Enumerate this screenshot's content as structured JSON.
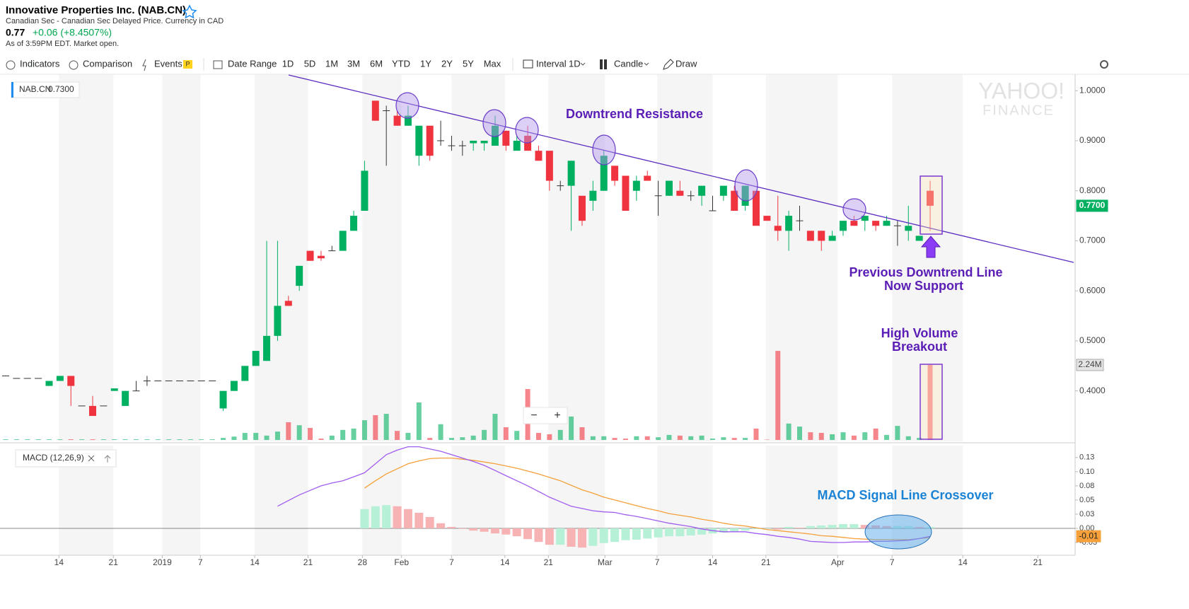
{
  "header": {
    "title": "Innovative Properties Inc. (NAB.CN)",
    "subtitle": "Canadian Sec - Canadian Sec Delayed Price. Currency in CAD",
    "price": "0.77",
    "change": "+0.06 (+8.4507%)",
    "as_of": "As of 3:59PM EDT. Market open."
  },
  "toolbar": {
    "indicators": "Indicators",
    "comparison": "Comparison",
    "events": "Events",
    "events_badge": "P",
    "date_range": "Date Range",
    "ranges": [
      "1D",
      "5D",
      "1M",
      "3M",
      "6M",
      "YTD",
      "1Y",
      "2Y",
      "5Y",
      "Max"
    ],
    "interval_label": "Interval",
    "interval_value": "1D",
    "chart_style": "Candle",
    "draw": "Draw"
  },
  "chart_data": {
    "type": "candlestick",
    "legend_symbol": "NAB.CN",
    "legend_value": "0.7300",
    "watermark": [
      "YAHOO!",
      "FINANCE"
    ],
    "zoom": [
      "−",
      "+"
    ],
    "up_color": "#00b061",
    "down_color": "#f0343f",
    "x": [
      0,
      1,
      2,
      3,
      4,
      5,
      6,
      7,
      8,
      9,
      10,
      11,
      12,
      13,
      14,
      15,
      16,
      17,
      18,
      19,
      20,
      21,
      22,
      23,
      24,
      25,
      26,
      27,
      28,
      29,
      30,
      31,
      32,
      33,
      34,
      35,
      36,
      37,
      38,
      39,
      40,
      41,
      42,
      43,
      44,
      45,
      46,
      47,
      48,
      49,
      50,
      51,
      52,
      53,
      54,
      55,
      56,
      57,
      58,
      59,
      60,
      61,
      62,
      63,
      64,
      65,
      66,
      67,
      68,
      69,
      70,
      71,
      72,
      73,
      74,
      75,
      76,
      77,
      78,
      79,
      80,
      81,
      82,
      83,
      84,
      85
    ],
    "xlim": [
      0,
      98.2
    ],
    "xticks": [
      {
        "value": 4.9,
        "label": "14"
      },
      {
        "value": 9.9,
        "label": "21"
      },
      {
        "value": 14.4,
        "label": "2019"
      },
      {
        "value": 17.9,
        "label": "7"
      },
      {
        "value": 22.9,
        "label": "14"
      },
      {
        "value": 27.8,
        "label": "21"
      },
      {
        "value": 32.8,
        "label": "28"
      },
      {
        "value": 36.4,
        "label": "Feb"
      },
      {
        "value": 41,
        "label": "7"
      },
      {
        "value": 45.9,
        "label": "14"
      },
      {
        "value": 49.9,
        "label": "21"
      },
      {
        "value": 55.1,
        "label": "Mar"
      },
      {
        "value": 59.9,
        "label": "7"
      },
      {
        "value": 65,
        "label": "14"
      },
      {
        "value": 69.9,
        "label": "21"
      },
      {
        "value": 76.5,
        "label": "Apr"
      },
      {
        "value": 81.5,
        "label": "7"
      },
      {
        "value": 88,
        "label": "14"
      },
      {
        "value": 94.9,
        "label": "21"
      }
    ],
    "open": [
      0.43,
      0.425,
      0.425,
      0.425,
      0.41,
      0.42,
      0.43,
      0.37,
      0.37,
      0.37,
      0.4,
      0.37,
      0.4,
      0.42,
      0.42,
      0.42,
      0.42,
      0.42,
      0.42,
      0.42,
      0.365,
      0.4,
      0.42,
      0.45,
      0.46,
      0.51,
      0.58,
      0.61,
      0.68,
      0.67,
      0.68,
      0.68,
      0.72,
      0.76,
      0.98,
      0.96,
      0.95,
      0.93,
      0.87,
      0.93,
      0.9,
      0.89,
      0.89,
      0.895,
      0.895,
      0.89,
      0.92,
      0.88,
      0.91,
      0.88,
      0.88,
      0.81,
      0.81,
      0.79,
      0.78,
      0.8,
      0.85,
      0.83,
      0.8,
      0.83,
      0.79,
      0.79,
      0.8,
      0.79,
      0.79,
      0.76,
      0.79,
      0.8,
      0.77,
      0.8,
      0.75,
      0.73,
      0.72,
      0.74,
      0.72,
      0.72,
      0.7,
      0.72,
      0.74,
      0.74,
      0.74,
      0.73,
      0.73,
      0.72,
      0.7,
      0.8
    ],
    "high": [
      0.43,
      0.425,
      0.425,
      0.425,
      0.42,
      0.43,
      0.43,
      0.37,
      0.39,
      0.37,
      0.405,
      0.4,
      0.42,
      0.43,
      0.42,
      0.42,
      0.42,
      0.42,
      0.42,
      0.42,
      0.4,
      0.42,
      0.45,
      0.48,
      0.7,
      0.7,
      0.59,
      0.65,
      0.68,
      0.68,
      0.69,
      0.72,
      0.76,
      0.86,
      0.98,
      0.97,
      0.96,
      0.97,
      0.93,
      0.93,
      0.94,
      0.91,
      0.9,
      0.9,
      0.9,
      0.95,
      0.92,
      0.91,
      0.93,
      0.89,
      0.88,
      0.82,
      0.86,
      0.79,
      0.82,
      0.88,
      0.85,
      0.83,
      0.83,
      0.84,
      0.82,
      0.82,
      0.82,
      0.8,
      0.81,
      0.79,
      0.81,
      0.81,
      0.81,
      0.8,
      0.75,
      0.79,
      0.76,
      0.77,
      0.72,
      0.72,
      0.72,
      0.74,
      0.75,
      0.75,
      0.74,
      0.75,
      0.74,
      0.77,
      0.71,
      0.82
    ],
    "low": [
      0.43,
      0.425,
      0.425,
      0.425,
      0.41,
      0.42,
      0.37,
      0.37,
      0.35,
      0.37,
      0.4,
      0.37,
      0.4,
      0.41,
      0.42,
      0.42,
      0.42,
      0.42,
      0.42,
      0.42,
      0.36,
      0.4,
      0.42,
      0.45,
      0.46,
      0.5,
      0.57,
      0.6,
      0.66,
      0.66,
      0.68,
      0.68,
      0.72,
      0.76,
      0.94,
      0.85,
      0.93,
      0.93,
      0.85,
      0.86,
      0.89,
      0.88,
      0.87,
      0.88,
      0.88,
      0.89,
      0.88,
      0.88,
      0.88,
      0.86,
      0.8,
      0.8,
      0.72,
      0.73,
      0.76,
      0.8,
      0.81,
      0.76,
      0.78,
      0.82,
      0.75,
      0.79,
      0.79,
      0.78,
      0.77,
      0.76,
      0.78,
      0.76,
      0.76,
      0.73,
      0.74,
      0.7,
      0.68,
      0.72,
      0.7,
      0.68,
      0.7,
      0.71,
      0.73,
      0.72,
      0.72,
      0.73,
      0.69,
      0.7,
      0.7,
      0.72
    ],
    "close": [
      0.43,
      0.425,
      0.425,
      0.425,
      0.42,
      0.43,
      0.41,
      0.37,
      0.35,
      0.37,
      0.405,
      0.4,
      0.4,
      0.42,
      0.42,
      0.42,
      0.42,
      0.42,
      0.42,
      0.42,
      0.4,
      0.42,
      0.45,
      0.48,
      0.51,
      0.57,
      0.57,
      0.65,
      0.66,
      0.665,
      0.68,
      0.72,
      0.75,
      0.84,
      0.94,
      0.96,
      0.93,
      0.95,
      0.93,
      0.87,
      0.9,
      0.89,
      0.89,
      0.9,
      0.9,
      0.93,
      0.89,
      0.9,
      0.88,
      0.86,
      0.82,
      0.81,
      0.86,
      0.74,
      0.8,
      0.87,
      0.82,
      0.76,
      0.82,
      0.82,
      0.79,
      0.82,
      0.79,
      0.79,
      0.81,
      0.76,
      0.81,
      0.76,
      0.81,
      0.73,
      0.74,
      0.72,
      0.75,
      0.74,
      0.7,
      0.7,
      0.71,
      0.74,
      0.73,
      0.75,
      0.73,
      0.74,
      0.73,
      0.73,
      0.71,
      0.77
    ],
    "ylim": [
      0.302,
      1.03
    ],
    "yticks": [
      {
        "value": 1.0,
        "label": "1.0000"
      },
      {
        "value": 0.9,
        "label": "0.9000"
      },
      {
        "value": 0.8,
        "label": "0.8000"
      },
      {
        "value": 0.7,
        "label": "0.7000"
      },
      {
        "value": 0.6,
        "label": "0.6000"
      },
      {
        "value": 0.5,
        "label": "0.5000"
      },
      {
        "value": 0.4,
        "label": "0.4000"
      }
    ],
    "price_marker": {
      "value": 0.77,
      "label": "0.7700"
    },
    "volume": {
      "ylim": [
        0,
        3000000
      ],
      "marker": {
        "value": 2240000,
        "label": "2.24M"
      },
      "values": [
        20000,
        20000,
        20000,
        20000,
        20000,
        20000,
        20000,
        20000,
        20000,
        20000,
        20000,
        20000,
        20000,
        20000,
        20000,
        20000,
        20000,
        20000,
        20000,
        20000,
        60000,
        100000,
        210000,
        210000,
        130000,
        250000,
        530000,
        440000,
        360000,
        40000,
        130000,
        300000,
        340000,
        590000,
        740000,
        780000,
        270000,
        210000,
        1120000,
        60000,
        470000,
        60000,
        80000,
        130000,
        300000,
        780000,
        380000,
        270000,
        1520000,
        210000,
        170000,
        300000,
        700000,
        380000,
        110000,
        110000,
        60000,
        40000,
        110000,
        110000,
        80000,
        150000,
        130000,
        110000,
        130000,
        40000,
        80000,
        60000,
        60000,
        340000,
        10000,
        2660000,
        490000,
        400000,
        230000,
        210000,
        170000,
        230000,
        130000,
        230000,
        340000,
        150000,
        420000,
        110000,
        60000,
        2240000
      ]
    },
    "macd": {
      "legend": "MACD (12,26,9)",
      "ylim": [
        -0.0475,
        0.146
      ],
      "macd_color": "#a15cf0",
      "signal_color": "#f5a03a",
      "up_color": "#b6f0d6",
      "down_color": "#f7b3b3",
      "yticks": [
        {
          "value": 0.125,
          "label": "0.13"
        },
        {
          "value": 0.1,
          "label": "0.10"
        },
        {
          "value": 0.075,
          "label": "0.08"
        },
        {
          "value": 0.05,
          "label": "0.05"
        },
        {
          "value": 0.025,
          "label": "0.03"
        },
        {
          "value": 0,
          "label": "0.00"
        },
        {
          "value": -0.025,
          "label": "-0.03"
        }
      ],
      "marker": {
        "value": -0.014,
        "label": "-0.01"
      },
      "macd_line": [
        null,
        null,
        null,
        null,
        null,
        null,
        null,
        null,
        null,
        null,
        null,
        null,
        null,
        null,
        null,
        null,
        null,
        null,
        null,
        null,
        null,
        null,
        null,
        null,
        null,
        0.039,
        0.049,
        0.059,
        0.067,
        0.075,
        0.08,
        0.084,
        0.091,
        0.098,
        0.114,
        0.13,
        0.138,
        0.144,
        0.144,
        0.14,
        0.136,
        0.13,
        0.124,
        0.118,
        0.111,
        0.102,
        0.093,
        0.084,
        0.075,
        0.065,
        0.055,
        0.047,
        0.039,
        0.035,
        0.031,
        0.029,
        0.028,
        0.024,
        0.021,
        0.017,
        0.013,
        0.009,
        0.006,
        0.003,
        -0.001,
        -0.004,
        -0.006,
        -0.006,
        -0.006,
        -0.009,
        -0.011,
        -0.014,
        -0.016,
        -0.019,
        -0.023,
        -0.024,
        -0.025,
        -0.025,
        -0.024,
        -0.024,
        -0.023,
        -0.023,
        -0.022,
        -0.021,
        -0.018,
        -0.014
      ],
      "signal_line": [
        null,
        null,
        null,
        null,
        null,
        null,
        null,
        null,
        null,
        null,
        null,
        null,
        null,
        null,
        null,
        null,
        null,
        null,
        null,
        null,
        null,
        null,
        null,
        null,
        null,
        null,
        null,
        null,
        null,
        null,
        null,
        null,
        null,
        0.071,
        0.084,
        0.096,
        0.105,
        0.114,
        0.119,
        0.123,
        0.124,
        0.124,
        0.122,
        0.12,
        0.117,
        0.114,
        0.11,
        0.106,
        0.101,
        0.096,
        0.09,
        0.084,
        0.076,
        0.068,
        0.062,
        0.055,
        0.05,
        0.045,
        0.04,
        0.035,
        0.031,
        0.026,
        0.023,
        0.02,
        0.016,
        0.013,
        0.009,
        0.006,
        0.004,
        0.001,
        -0.002,
        -0.004,
        -0.006,
        -0.008,
        -0.01,
        -0.013,
        -0.014,
        -0.016,
        -0.018,
        -0.019,
        -0.02,
        -0.02,
        -0.02,
        -0.02,
        -0.018,
        -0.016
      ],
      "histogram": [
        null,
        null,
        null,
        null,
        null,
        null,
        null,
        null,
        null,
        null,
        null,
        null,
        null,
        null,
        null,
        null,
        null,
        null,
        null,
        null,
        null,
        null,
        null,
        null,
        null,
        null,
        null,
        null,
        null,
        null,
        null,
        null,
        null,
        0.034,
        0.039,
        0.041,
        0.039,
        0.034,
        0.0275,
        0.02,
        0.009,
        0.0025,
        -0.001,
        -0.004,
        -0.006,
        -0.009,
        -0.011,
        -0.014,
        -0.019,
        -0.024,
        -0.029,
        -0.029,
        -0.0325,
        -0.034,
        -0.031,
        -0.026,
        -0.024,
        -0.021,
        -0.02,
        -0.018,
        -0.016,
        -0.014,
        -0.014,
        -0.0125,
        -0.011,
        -0.009,
        -0.0075,
        -0.006,
        -0.004,
        -0.001,
        0,
        -0.002,
        0.0025,
        0.001,
        0.004,
        0.005,
        0.006,
        0.0075,
        0.0075,
        0.006,
        0.005,
        0.004,
        0.004,
        0.004,
        0.0025,
        0.0025
      ]
    },
    "annotations": [
      "Downtrend Resistance",
      "Previous Downtrend Line",
      "Now Support",
      "High Volume",
      "Breakout",
      "MACD Signal Line Crossover"
    ]
  }
}
